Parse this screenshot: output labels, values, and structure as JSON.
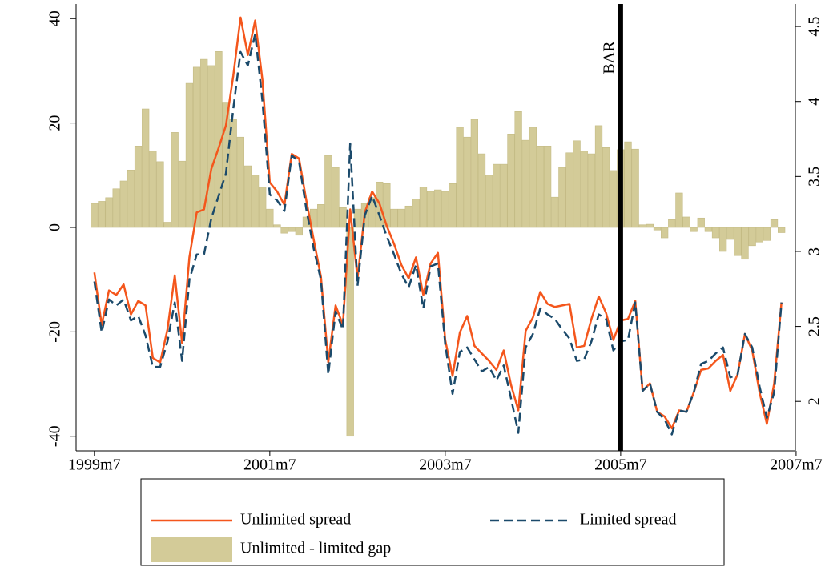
{
  "chart_data": {
    "type": "bar",
    "x": [
      474,
      475,
      476,
      477,
      478,
      479,
      480,
      481,
      482,
      483,
      484,
      485,
      486,
      487,
      488,
      489,
      490,
      491,
      492,
      493,
      494,
      495,
      496,
      497,
      498,
      499,
      500,
      501,
      502,
      503,
      504,
      505,
      506,
      507,
      508,
      509,
      510,
      511,
      512,
      513,
      514,
      515,
      516,
      517,
      518,
      519,
      520,
      521,
      522,
      523,
      524,
      525,
      526,
      527,
      528,
      529,
      530,
      531,
      532,
      533,
      534,
      535,
      536,
      537,
      538,
      539,
      540,
      541,
      542,
      543,
      544,
      545,
      546,
      547,
      548,
      549,
      550,
      551,
      552,
      553,
      554,
      555,
      556,
      557,
      558,
      559,
      560,
      561,
      562,
      563,
      564,
      565,
      566,
      567,
      568
    ],
    "series": [
      {
        "name": "Unlimited - limited gap",
        "type": "bar",
        "axis": "y",
        "color": "#d3cb98",
        "values": [
          4.6,
          5,
          5.7,
          7.4,
          8.9,
          11,
          15.6,
          22.7,
          14.6,
          12.6,
          1,
          18.2,
          12.7,
          27.6,
          30.7,
          32.2,
          31,
          33.7,
          24,
          20.7,
          17.3,
          11.8,
          10,
          7.7,
          3.5,
          0.5,
          -1.1,
          -0.8,
          -1.5,
          2,
          3.5,
          4.4,
          13.8,
          11.5,
          3.8,
          -40,
          3.5,
          4.6,
          5.7,
          8.7,
          8.4,
          3.5,
          3.5,
          4.1,
          5.4,
          7.7,
          6.9,
          7.2,
          6.9,
          8.4,
          19.2,
          17.3,
          20.7,
          14.1,
          10,
          12.1,
          12.1,
          17.9,
          22.2,
          16.7,
          19.2,
          15.6,
          15.6,
          5.8,
          11.5,
          14.3,
          16.6,
          14.6,
          14.1,
          19.5,
          15.3,
          10.9,
          14.9,
          16.4,
          15,
          0.5,
          0.6,
          -0.5,
          -2,
          1.5,
          6.6,
          2,
          -0.8,
          1.8,
          -0.8,
          -2,
          -4.6,
          -2.3,
          -5.4,
          -6.1,
          -3.5,
          -2.8,
          -2.5,
          1.5,
          -1
        ]
      },
      {
        "name": "Unlimited spread",
        "type": "line",
        "axis": "y2",
        "color": "#f4561c",
        "line_style": "solid",
        "values": [
          2.86,
          2.51,
          2.74,
          2.71,
          2.78,
          2.58,
          2.67,
          2.64,
          2.29,
          2.26,
          2.48,
          2.84,
          2.39,
          2.96,
          3.26,
          3.28,
          3.55,
          3.69,
          3.84,
          4.17,
          4.56,
          4.31,
          4.54,
          4.14,
          3.46,
          3.4,
          3.31,
          3.65,
          3.62,
          3.34,
          3.08,
          2.83,
          2.26,
          2.64,
          2.51,
          3.28,
          2.82,
          3.26,
          3.4,
          3.32,
          3.17,
          3.05,
          2.91,
          2.82,
          2.96,
          2.71,
          2.92,
          2.99,
          2.41,
          2.17,
          2.46,
          2.57,
          2.37,
          2.32,
          2.27,
          2.21,
          2.34,
          2.11,
          1.94,
          2.47,
          2.56,
          2.73,
          2.65,
          2.63,
          2.64,
          2.65,
          2.36,
          2.37,
          2.55,
          2.7,
          2.59,
          2.41,
          2.54,
          2.55,
          2.67,
          2.07,
          2.12,
          1.93,
          1.9,
          1.82,
          1.94,
          1.93,
          2.06,
          2.21,
          2.22,
          2.27,
          2.31,
          2.07,
          2.18,
          2.45,
          2.34,
          2.06,
          1.85,
          2.12,
          2.66
        ]
      },
      {
        "name": "Limited spread",
        "type": "line",
        "axis": "y2",
        "color": "#1b4a6b",
        "line_style": "dashed",
        "values": [
          2.8,
          2.46,
          2.68,
          2.64,
          2.68,
          2.54,
          2.57,
          2.44,
          2.23,
          2.23,
          2.4,
          2.66,
          2.27,
          2.81,
          2.98,
          2.98,
          3.22,
          3.37,
          3.52,
          3.95,
          4.33,
          4.24,
          4.45,
          4,
          3.38,
          3.34,
          3.27,
          3.64,
          3.6,
          3.28,
          3.02,
          2.81,
          2.18,
          2.6,
          2.48,
          3.72,
          2.77,
          3.24,
          3.37,
          3.24,
          3.1,
          2.98,
          2.85,
          2.76,
          2.91,
          2.62,
          2.9,
          2.92,
          2.38,
          2.05,
          2.33,
          2.36,
          2.28,
          2.2,
          2.23,
          2.14,
          2.24,
          2.02,
          1.79,
          2.36,
          2.45,
          2.62,
          2.58,
          2.55,
          2.48,
          2.42,
          2.27,
          2.28,
          2.4,
          2.58,
          2.55,
          2.34,
          2.4,
          2.41,
          2.66,
          2.07,
          2.12,
          1.93,
          1.88,
          1.78,
          1.94,
          1.93,
          2.06,
          2.25,
          2.27,
          2.32,
          2.36,
          2.16,
          2.18,
          2.45,
          2.36,
          2.1,
          1.89,
          2.06,
          2.66
        ]
      }
    ],
    "xlim": [
      471.5,
      569.9
    ],
    "xticks": [
      {
        "value": 474,
        "label": "1999m7"
      },
      {
        "value": 498,
        "label": "2001m7"
      },
      {
        "value": 522,
        "label": "2003m7"
      },
      {
        "value": 546,
        "label": "2005m7"
      },
      {
        "value": 570,
        "label": "2007m7"
      }
    ],
    "ylim": [
      -42.8,
      42.8
    ],
    "yticks": [
      -40,
      -20,
      0,
      20,
      40
    ],
    "y2lim": [
      1.67,
      4.65
    ],
    "y2ticks": [
      2,
      2.5,
      3,
      3.5,
      4,
      4.5
    ],
    "vline": {
      "x": 546,
      "label": "BAR",
      "color": "#000000"
    },
    "grid": false
  }
}
